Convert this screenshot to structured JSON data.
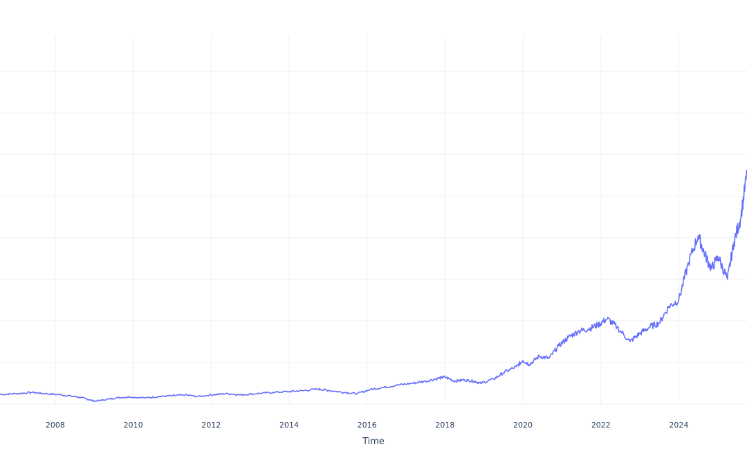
{
  "chart_data": {
    "type": "line",
    "title": "",
    "xlabel": "Time",
    "ylabel": "",
    "x_ticks": [
      "2008",
      "2010",
      "2012",
      "2014",
      "2016",
      "2018",
      "2020",
      "2022",
      "2024"
    ],
    "xlim": [
      "2006-08-01",
      "2025-10-01"
    ],
    "ylim": [
      0,
      9
    ],
    "y_grid_values": [
      1,
      2,
      3,
      4,
      5,
      6,
      7,
      8
    ],
    "grid": true,
    "legend": "none",
    "line_color": "#636efa",
    "series": [
      {
        "x": [
          "2006-08-01",
          "2007-01-01",
          "2007-06-01",
          "2007-10-01",
          "2008-03-01",
          "2008-07-01",
          "2008-10-01",
          "2009-01-01",
          "2009-04-01",
          "2009-08-01",
          "2009-12-01",
          "2010-05-01",
          "2010-09-01",
          "2011-01-01",
          "2011-05-01",
          "2011-09-01",
          "2012-02-01",
          "2012-06-01",
          "2012-10-01",
          "2013-03-01",
          "2013-08-01",
          "2014-01-01",
          "2014-05-01",
          "2014-10-01",
          "2015-01-01",
          "2015-06-01",
          "2015-10-01",
          "2016-02-01",
          "2016-06-01",
          "2016-10-01",
          "2017-03-01",
          "2017-07-01",
          "2017-11-01",
          "2018-01-01",
          "2018-04-01",
          "2018-07-01",
          "2018-10-01",
          "2018-12-01",
          "2019-04-01",
          "2019-07-01",
          "2019-11-01",
          "2020-01-01",
          "2020-03-01",
          "2020-06-01",
          "2020-09-01",
          "2020-12-01",
          "2021-03-01",
          "2021-06-01",
          "2021-09-01",
          "2021-12-01",
          "2022-03-01",
          "2022-06-01",
          "2022-10-01",
          "2023-01-01",
          "2023-04-01",
          "2023-07-01",
          "2023-10-01",
          "2024-01-01",
          "2024-04-01",
          "2024-07-01",
          "2024-09-01",
          "2024-11-01",
          "2025-01-01",
          "2025-04-01",
          "2025-06-01",
          "2025-08-01",
          "2025-10-01"
        ],
        "y": [
          0.23,
          0.25,
          0.28,
          0.25,
          0.22,
          0.18,
          0.14,
          0.07,
          0.1,
          0.15,
          0.17,
          0.15,
          0.18,
          0.2,
          0.22,
          0.18,
          0.23,
          0.25,
          0.22,
          0.25,
          0.28,
          0.3,
          0.32,
          0.36,
          0.33,
          0.28,
          0.25,
          0.35,
          0.4,
          0.45,
          0.5,
          0.55,
          0.62,
          0.65,
          0.55,
          0.58,
          0.55,
          0.5,
          0.6,
          0.75,
          0.9,
          1.05,
          0.95,
          1.15,
          1.1,
          1.4,
          1.6,
          1.75,
          1.8,
          1.9,
          2.05,
          1.85,
          1.5,
          1.7,
          1.85,
          1.95,
          2.35,
          2.5,
          3.4,
          4.05,
          3.6,
          3.25,
          3.55,
          3.0,
          3.9,
          4.45,
          5.55
        ]
      }
    ]
  }
}
